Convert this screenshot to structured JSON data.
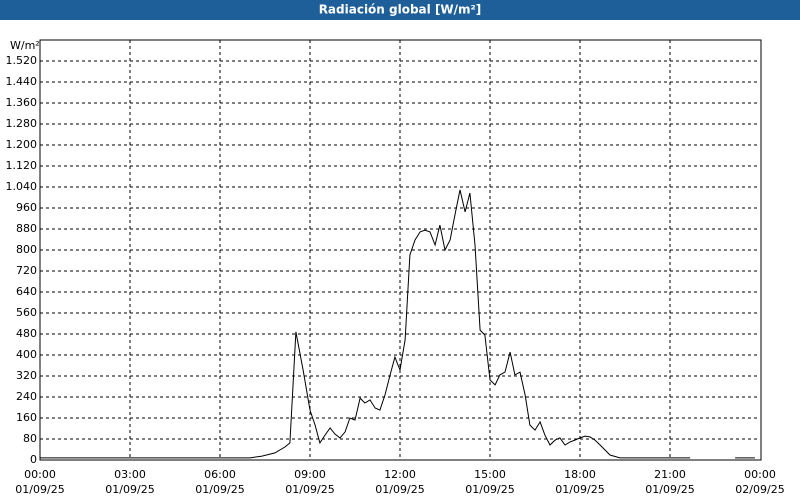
{
  "chart_data": {
    "type": "line",
    "title": "Radiación global [W/m²]",
    "y_label": "W/m²",
    "color": "#000000",
    "grid": true,
    "ylim": [
      0,
      1600
    ],
    "yticks": [
      0,
      80,
      160,
      240,
      320,
      400,
      480,
      560,
      640,
      720,
      800,
      880,
      960,
      {
        "value": 1040,
        "label": "1.040"
      },
      {
        "value": 1120,
        "label": "1.120"
      },
      {
        "value": 1200,
        "label": "1.200"
      },
      {
        "value": 1280,
        "label": "1.280"
      },
      {
        "value": 1360,
        "label": "1.360"
      },
      {
        "value": 1440,
        "label": "1.440"
      },
      {
        "value": 1520,
        "label": "1.520"
      }
    ],
    "xlim": [
      0,
      24
    ],
    "xticks": [
      {
        "value": 0,
        "label": "00:00"
      },
      {
        "value": 3,
        "label": "03:00"
      },
      {
        "value": 6,
        "label": "06:00"
      },
      {
        "value": 9,
        "label": "09:00"
      },
      {
        "value": 12,
        "label": "12:00"
      },
      {
        "value": 15,
        "label": "15:00"
      },
      {
        "value": 18,
        "label": "18:00"
      },
      {
        "value": 21,
        "label": "21:00"
      },
      {
        "value": 24,
        "label": "00:00"
      }
    ],
    "xtick_dates": [
      "01/09/25",
      "01/09/25",
      "01/09/25",
      "01/09/25",
      "01/09/25",
      "01/09/25",
      "01/09/25",
      "01/09/25",
      "02/09/25"
    ],
    "x": [
      0,
      7,
      7.4,
      7.83,
      8.17,
      8.33,
      8.53,
      8.77,
      9,
      9.17,
      9.33,
      9.5,
      9.67,
      9.83,
      10,
      10.17,
      10.33,
      10.5,
      10.67,
      10.83,
      11,
      11.17,
      11.33,
      11.5,
      11.67,
      11.83,
      12,
      12.17,
      12.33,
      12.5,
      12.67,
      12.83,
      13,
      13.17,
      13.33,
      13.5,
      13.67,
      13.83,
      14,
      14.17,
      14.33,
      14.5,
      14.67,
      14.83,
      15,
      15.17,
      15.33,
      15.5,
      15.67,
      15.83,
      16,
      16.17,
      16.33,
      16.5,
      16.67,
      16.83,
      17,
      17.17,
      17.33,
      17.5,
      17.67,
      17.83,
      18,
      18.17,
      18.33,
      18.5,
      18.67,
      19,
      19.33,
      21.67,
      22.5,
      23.17,
      23.83
    ],
    "values": [
      8,
      8,
      15,
      27,
      50,
      65,
      488,
      343,
      190,
      133,
      65,
      95,
      122,
      99,
      84,
      107,
      160,
      152,
      236,
      217,
      229,
      198,
      190,
      248,
      324,
      392,
      343,
      457,
      781,
      838,
      869,
      876,
      869,
      819,
      895,
      800,
      838,
      933,
      1029,
      945,
      1017,
      819,
      495,
      476,
      305,
      286,
      324,
      335,
      411,
      324,
      335,
      248,
      133,
      114,
      145,
      95,
      57,
      76,
      84,
      57,
      69,
      76,
      84,
      91,
      88,
      76,
      57,
      19,
      8,
      8,
      null,
      8,
      8
    ]
  }
}
